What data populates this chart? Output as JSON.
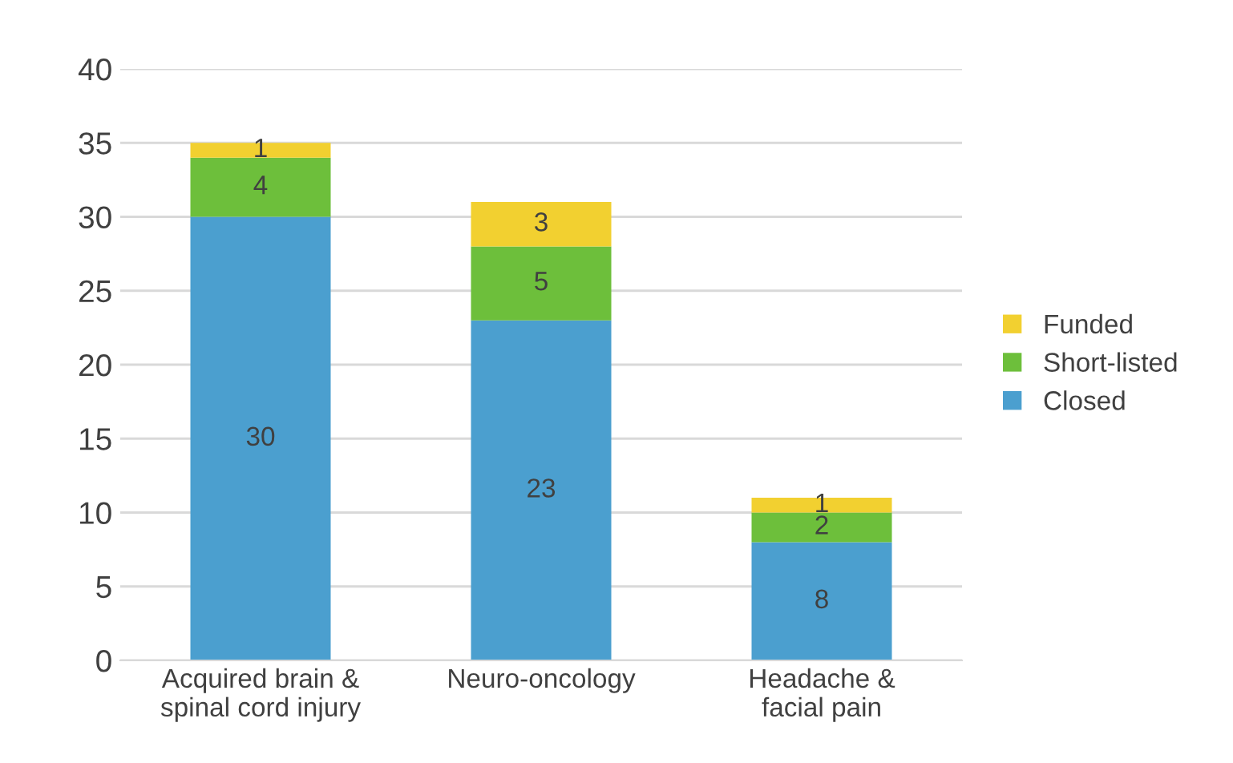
{
  "chart_data": {
    "type": "bar",
    "stacked": true,
    "categories": [
      "Acquired brain & spinal cord injury",
      "Neuro-oncology",
      "Headache & facial pain"
    ],
    "series": [
      {
        "name": "Closed",
        "color": "#4b9fcf",
        "values": [
          30,
          23,
          8
        ]
      },
      {
        "name": "Short-listed",
        "color": "#6dbf3b",
        "values": [
          4,
          5,
          2
        ]
      },
      {
        "name": "Funded",
        "color": "#f2d030",
        "values": [
          1,
          3,
          1
        ]
      }
    ],
    "ylim": [
      0,
      40
    ],
    "yticks": [
      0,
      5,
      10,
      15,
      20,
      25,
      30,
      35,
      40
    ],
    "grid": "y",
    "legend": "right",
    "data_labels": true
  }
}
